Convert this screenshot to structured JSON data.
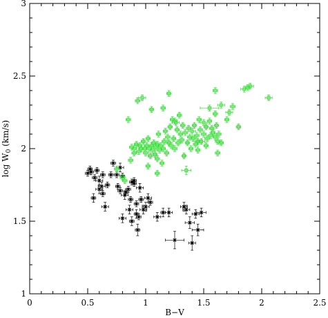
{
  "chart_data": {
    "type": "scatter",
    "xlabel": "B−V",
    "ylabel": "log W",
    "ylabel_sub": "0",
    "ylabel_unit": " (km/s)",
    "xlim": [
      0,
      2.5
    ],
    "ylim": [
      1,
      3
    ],
    "xticks": [
      "0",
      "0.5",
      "1",
      "1.5",
      "2",
      "2.5"
    ],
    "yticks": [
      "1",
      "1.5",
      "2",
      "2.5",
      "3"
    ],
    "grid": false,
    "colors": {
      "series_black": "#000000",
      "series_green": "#22dd22",
      "axes": "#000000"
    },
    "series": [
      {
        "marker": "asterisk",
        "color": "#000000",
        "points": [
          [
            0.5,
            1.83,
            0.02,
            0.02
          ],
          [
            0.52,
            1.86,
            0.02,
            0.02
          ],
          [
            0.53,
            1.84,
            0.02,
            0.02
          ],
          [
            0.55,
            1.66,
            0.02,
            0.03
          ],
          [
            0.56,
            1.8,
            0.02,
            0.02
          ],
          [
            0.58,
            1.85,
            0.02,
            0.02
          ],
          [
            0.6,
            1.78,
            0.03,
            0.03
          ],
          [
            0.6,
            1.72,
            0.03,
            0.03
          ],
          [
            0.62,
            1.74,
            0.03,
            0.03
          ],
          [
            0.63,
            1.69,
            0.02,
            0.02
          ],
          [
            0.63,
            1.82,
            0.02,
            0.02
          ],
          [
            0.65,
            1.6,
            0.03,
            0.03
          ],
          [
            0.67,
            1.75,
            0.02,
            0.02
          ],
          [
            0.7,
            1.82,
            0.02,
            0.02
          ],
          [
            0.72,
            1.9,
            0.02,
            0.02
          ],
          [
            0.75,
            1.82,
            0.02,
            0.02
          ],
          [
            0.76,
            1.74,
            0.02,
            0.02
          ],
          [
            0.78,
            1.71,
            0.02,
            0.02
          ],
          [
            0.78,
            1.87,
            0.03,
            0.03
          ],
          [
            0.8,
            1.81,
            0.02,
            0.02
          ],
          [
            0.8,
            1.52,
            0.03,
            0.03
          ],
          [
            0.82,
            1.68,
            0.03,
            0.03
          ],
          [
            0.83,
            1.7,
            0.02,
            0.02
          ],
          [
            0.85,
            1.72,
            0.02,
            0.02
          ],
          [
            0.86,
            1.58,
            0.03,
            0.03
          ],
          [
            0.87,
            1.65,
            0.02,
            0.02
          ],
          [
            0.88,
            1.5,
            0.02,
            0.03
          ],
          [
            0.88,
            1.77,
            0.02,
            0.02
          ],
          [
            0.9,
            1.78,
            0.02,
            0.02
          ],
          [
            0.9,
            1.76,
            0.02,
            0.02
          ],
          [
            0.92,
            1.62,
            0.02,
            0.02
          ],
          [
            0.92,
            1.55,
            0.02,
            0.03
          ],
          [
            0.93,
            1.44,
            0.02,
            0.04
          ],
          [
            0.94,
            1.53,
            0.02,
            0.02
          ],
          [
            0.95,
            1.73,
            0.03,
            0.03
          ],
          [
            0.96,
            1.65,
            0.02,
            0.02
          ],
          [
            0.98,
            1.58,
            0.03,
            0.03
          ],
          [
            1.0,
            1.6,
            0.03,
            0.03
          ],
          [
            1.02,
            1.66,
            0.03,
            0.03
          ],
          [
            1.04,
            1.63,
            0.02,
            0.02
          ],
          [
            1.1,
            1.53,
            0.03,
            0.03
          ],
          [
            1.15,
            1.56,
            0.02,
            0.03
          ],
          [
            1.2,
            1.56,
            0.03,
            0.03
          ],
          [
            1.25,
            1.37,
            0.08,
            0.06
          ],
          [
            1.33,
            1.6,
            0.03,
            0.03
          ],
          [
            1.35,
            1.58,
            0.03,
            0.03
          ],
          [
            1.38,
            1.49,
            0.04,
            0.04
          ],
          [
            1.4,
            1.35,
            0.03,
            0.05
          ],
          [
            1.43,
            1.55,
            0.03,
            0.03
          ],
          [
            1.45,
            1.44,
            0.05,
            0.04
          ],
          [
            1.48,
            1.56,
            0.04,
            0.03
          ]
        ]
      },
      {
        "marker": "square",
        "color": "#22dd22",
        "points": [
          [
            0.75,
            1.86,
            0.02,
            0.02
          ],
          [
            0.8,
            1.8,
            0.02,
            0.02
          ],
          [
            0.82,
            1.78,
            0.02,
            0.02
          ],
          [
            0.85,
            2.2,
            0.02,
            0.02
          ],
          [
            0.87,
            1.92,
            0.02,
            0.02
          ],
          [
            0.88,
            2.01,
            0.02,
            0.02
          ],
          [
            0.9,
            2.0,
            0.02,
            0.02
          ],
          [
            0.9,
            1.97,
            0.02,
            0.02
          ],
          [
            0.92,
            2.03,
            0.02,
            0.02
          ],
          [
            0.93,
            2.33,
            0.02,
            0.02
          ],
          [
            0.94,
            1.98,
            0.02,
            0.02
          ],
          [
            0.95,
            2.02,
            0.02,
            0.02
          ],
          [
            0.96,
            2.0,
            0.02,
            0.02
          ],
          [
            0.97,
            2.35,
            0.03,
            0.02
          ],
          [
            0.98,
            2.05,
            0.02,
            0.02
          ],
          [
            0.99,
            2.0,
            0.02,
            0.02
          ],
          [
            1.0,
            1.97,
            0.02,
            0.02
          ],
          [
            1.01,
            2.02,
            0.02,
            0.02
          ],
          [
            1.02,
            2.07,
            0.02,
            0.02
          ],
          [
            1.02,
            1.88,
            0.02,
            0.02
          ],
          [
            1.03,
            2.0,
            0.02,
            0.02
          ],
          [
            1.04,
            1.95,
            0.02,
            0.02
          ],
          [
            1.05,
            2.02,
            0.02,
            0.02
          ],
          [
            1.06,
            1.99,
            0.02,
            0.02
          ],
          [
            1.07,
            2.04,
            0.02,
            0.02
          ],
          [
            1.08,
            1.96,
            0.02,
            0.02
          ],
          [
            1.09,
            2.01,
            0.02,
            0.02
          ],
          [
            1.1,
            2.03,
            0.02,
            0.02
          ],
          [
            1.1,
            1.93,
            0.02,
            0.02
          ],
          [
            1.11,
            2.1,
            0.02,
            0.02
          ],
          [
            1.12,
            1.99,
            0.02,
            0.02
          ],
          [
            1.13,
            2.02,
            0.02,
            0.02
          ],
          [
            1.14,
            1.9,
            0.02,
            0.02
          ],
          [
            1.15,
            2.0,
            0.02,
            0.02
          ],
          [
            1.16,
            2.05,
            0.02,
            0.02
          ],
          [
            1.17,
            2.12,
            0.02,
            0.02
          ],
          [
            1.18,
            1.97,
            0.02,
            0.02
          ],
          [
            1.19,
            2.08,
            0.02,
            0.02
          ],
          [
            1.2,
            2.04,
            0.02,
            0.02
          ],
          [
            1.21,
            2.15,
            0.02,
            0.02
          ],
          [
            1.22,
            2.02,
            0.02,
            0.02
          ],
          [
            1.23,
            2.2,
            0.02,
            0.02
          ],
          [
            1.24,
            2.07,
            0.02,
            0.02
          ],
          [
            1.25,
            2.0,
            0.02,
            0.02
          ],
          [
            1.26,
            2.18,
            0.03,
            0.02
          ],
          [
            1.27,
            2.13,
            0.02,
            0.02
          ],
          [
            1.28,
            2.04,
            0.02,
            0.02
          ],
          [
            1.29,
            2.23,
            0.02,
            0.02
          ],
          [
            1.3,
            2.1,
            0.02,
            0.02
          ],
          [
            1.31,
            2.06,
            0.02,
            0.02
          ],
          [
            1.32,
            2.16,
            0.02,
            0.02
          ],
          [
            1.33,
            1.95,
            0.02,
            0.02
          ],
          [
            1.34,
            2.11,
            0.02,
            0.02
          ],
          [
            1.35,
            1.85,
            0.04,
            0.03
          ],
          [
            1.36,
            2.04,
            0.02,
            0.02
          ],
          [
            1.37,
            2.14,
            0.02,
            0.02
          ],
          [
            1.38,
            2.08,
            0.02,
            0.02
          ],
          [
            1.39,
            2.0,
            0.02,
            0.02
          ],
          [
            1.4,
            2.12,
            0.03,
            0.02
          ],
          [
            1.41,
            2.07,
            0.02,
            0.02
          ],
          [
            1.42,
            2.16,
            0.02,
            0.02
          ],
          [
            1.43,
            2.03,
            0.02,
            0.02
          ],
          [
            1.44,
            2.09,
            0.02,
            0.02
          ],
          [
            1.45,
            1.99,
            0.02,
            0.02
          ],
          [
            1.46,
            2.2,
            0.02,
            0.02
          ],
          [
            1.47,
            2.13,
            0.02,
            0.02
          ],
          [
            1.48,
            2.05,
            0.03,
            0.02
          ],
          [
            1.5,
            2.18,
            0.03,
            0.02
          ],
          [
            1.5,
            2.1,
            0.02,
            0.02
          ],
          [
            1.52,
            2.15,
            0.02,
            0.02
          ],
          [
            1.53,
            2.07,
            0.02,
            0.02
          ],
          [
            1.55,
            2.19,
            0.02,
            0.02
          ],
          [
            1.56,
            2.09,
            0.02,
            0.02
          ],
          [
            1.57,
            2.14,
            0.02,
            0.02
          ],
          [
            1.58,
            2.11,
            0.02,
            0.02
          ],
          [
            1.6,
            2.24,
            0.02,
            0.02
          ],
          [
            1.6,
            2.08,
            0.02,
            0.02
          ],
          [
            1.61,
            2.16,
            0.02,
            0.02
          ],
          [
            1.62,
            2.05,
            0.02,
            0.02
          ],
          [
            1.63,
            2.1,
            0.02,
            0.02
          ],
          [
            1.65,
            2.04,
            0.02,
            0.02
          ],
          [
            1.55,
            2.28,
            0.08,
            0.02
          ],
          [
            1.65,
            2.3,
            0.03,
            0.02
          ],
          [
            1.6,
            2.4,
            0.02,
            0.02
          ],
          [
            1.85,
            2.41,
            0.03,
            0.02
          ],
          [
            1.9,
            2.43,
            0.03,
            0.02
          ],
          [
            1.88,
            2.42,
            0.02,
            0.02
          ],
          [
            2.06,
            2.35,
            0.03,
            0.02
          ],
          [
            1.72,
            2.25,
            0.03,
            0.02
          ],
          [
            1.8,
            2.15,
            0.02,
            0.02
          ],
          [
            1.75,
            2.29,
            0.02,
            0.02
          ],
          [
            1.7,
            2.2,
            0.02,
            0.02
          ],
          [
            1.45,
            2.05,
            0.02,
            0.02
          ],
          [
            1.52,
            2.02,
            0.02,
            0.02
          ],
          [
            1.2,
            2.38,
            0.02,
            0.02
          ],
          [
            1.1,
            1.83,
            0.02,
            0.02
          ],
          [
            1.05,
            2.27,
            0.02,
            0.02
          ],
          [
            1.15,
            2.28,
            0.02,
            0.02
          ],
          [
            1.25,
            2.19,
            0.02,
            0.02
          ],
          [
            1.62,
            1.97,
            0.02,
            0.02
          ]
        ]
      }
    ]
  }
}
